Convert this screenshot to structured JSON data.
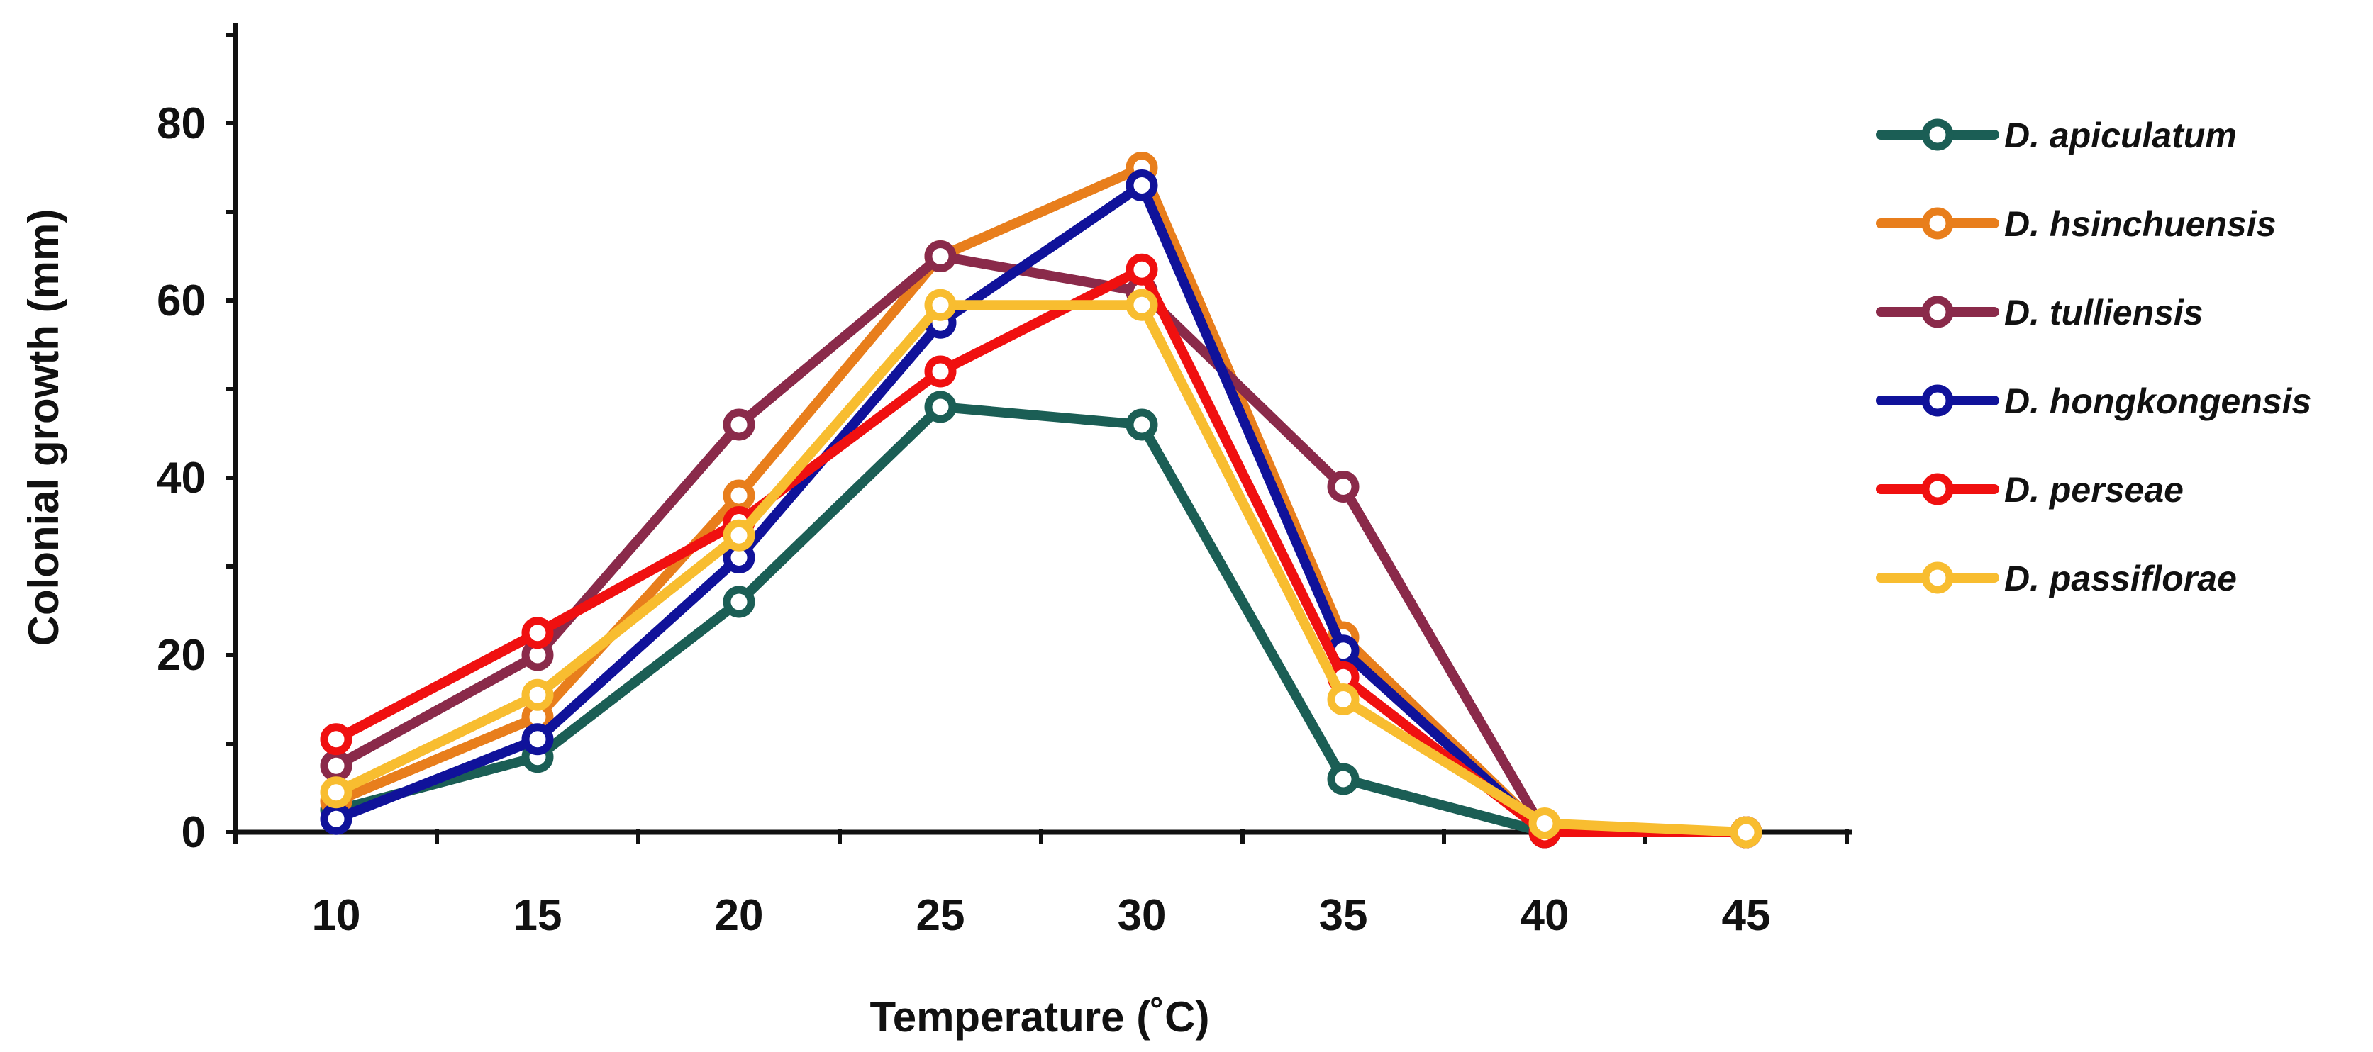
{
  "chart_data": {
    "type": "line",
    "title": "",
    "xlabel": "Temperature (˚C)",
    "ylabel": "Colonial growth (mm)",
    "x": [
      10,
      15,
      20,
      25,
      30,
      35,
      40,
      45
    ],
    "x_tick_labels": [
      "10",
      "15",
      "20",
      "25",
      "30",
      "35",
      "40",
      "45"
    ],
    "y_tick_labels": [
      "0",
      "20",
      "40",
      "60",
      "80"
    ],
    "y_ticks": [
      0,
      20,
      40,
      60,
      80
    ],
    "ylim": [
      0,
      90
    ],
    "grid": false,
    "legend_position": "right",
    "series": [
      {
        "name": "D. apiculatum",
        "color": "#1b5e55",
        "values": [
          2.5,
          8.5,
          26,
          48,
          46,
          6,
          0,
          0
        ]
      },
      {
        "name": "D. hsinchuensis",
        "color": "#e87e1c",
        "values": [
          3.5,
          13,
          38,
          65,
          75,
          22,
          0,
          0
        ]
      },
      {
        "name": "D. tulliensis",
        "color": "#8a2a4a",
        "values": [
          7.5,
          20,
          46,
          65,
          61,
          39,
          0,
          0
        ]
      },
      {
        "name": "D. hongkongensis",
        "color": "#10129a",
        "values": [
          1.5,
          10.5,
          31,
          57.5,
          73,
          20.5,
          0,
          0
        ]
      },
      {
        "name": "D. perseae",
        "color": "#f01010",
        "values": [
          10.5,
          22.5,
          35,
          52,
          63.5,
          17.5,
          0,
          0
        ]
      },
      {
        "name": "D. passiflorae",
        "color": "#f8bd30",
        "values": [
          4.5,
          15.5,
          33.5,
          59.5,
          59.5,
          15,
          1,
          0
        ]
      }
    ]
  }
}
